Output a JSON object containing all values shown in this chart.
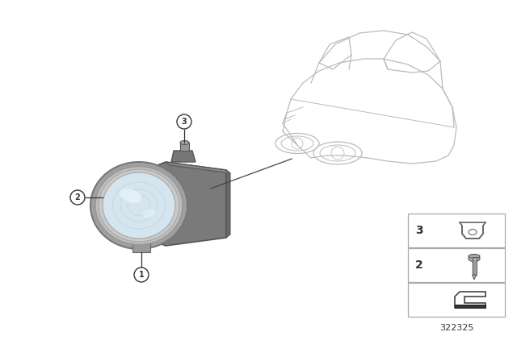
{
  "bg_color": "#ffffff",
  "part_number": "322325",
  "line_color": "#333333",
  "car_color": "#bbbbbb",
  "housing_color": "#888888",
  "housing_dark": "#666666",
  "lens_outer_color": "#b8b8b8",
  "lens_mid_color": "#cccccc",
  "lens_glass_color": "#dce8f0",
  "label_bg": "#ffffff",
  "label_border": "#333333",
  "legend_border": "#aaaaaa"
}
